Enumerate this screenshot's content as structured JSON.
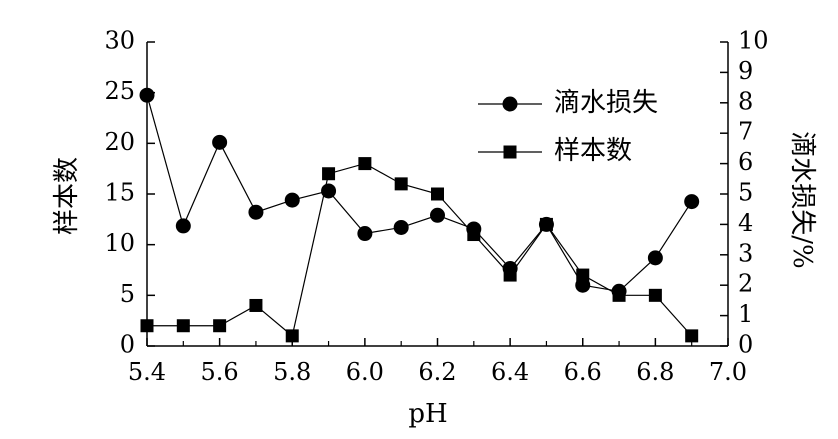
{
  "chart_data": {
    "type": "line",
    "title": "",
    "xlabel": "pH",
    "ylabel_left": "样本数",
    "ylabel_right": "滴水损失/%",
    "xlim": [
      5.4,
      7.0
    ],
    "ylim_left": [
      0,
      30
    ],
    "ylim_right": [
      0,
      10
    ],
    "x_ticks": [
      "5.4",
      "5.6",
      "5.8",
      "6.0",
      "6.2",
      "6.4",
      "6.6",
      "6.8",
      "7.0"
    ],
    "y_left_ticks": [
      "0",
      "5",
      "10",
      "15",
      "20",
      "25",
      "30"
    ],
    "y_right_ticks": [
      "0",
      "1",
      "2",
      "3",
      "4",
      "5",
      "6",
      "7",
      "8",
      "9",
      "10"
    ],
    "grid": false,
    "legend_position": "top-right",
    "series": [
      {
        "name": "滴水损失",
        "axis": "right",
        "marker": "circle",
        "x": [
          5.4,
          5.5,
          5.6,
          5.7,
          5.8,
          5.9,
          6.0,
          6.1,
          6.2,
          6.3,
          6.4,
          6.5,
          6.6,
          6.7,
          6.8,
          6.9
        ],
        "values": [
          8.25,
          3.95,
          6.7,
          4.4,
          4.8,
          5.1,
          3.7,
          3.9,
          4.3,
          3.85,
          2.55,
          4.0,
          2.0,
          1.8,
          2.9,
          4.75
        ]
      },
      {
        "name": "样本数",
        "axis": "left",
        "marker": "square",
        "x": [
          5.4,
          5.5,
          5.6,
          5.7,
          5.8,
          5.9,
          6.0,
          6.1,
          6.2,
          6.3,
          6.4,
          6.5,
          6.6,
          6.7,
          6.8,
          6.9
        ],
        "values": [
          2,
          2,
          2,
          4,
          1,
          17,
          18,
          16,
          15,
          11,
          7,
          12,
          7,
          5,
          5,
          1
        ]
      }
    ]
  }
}
